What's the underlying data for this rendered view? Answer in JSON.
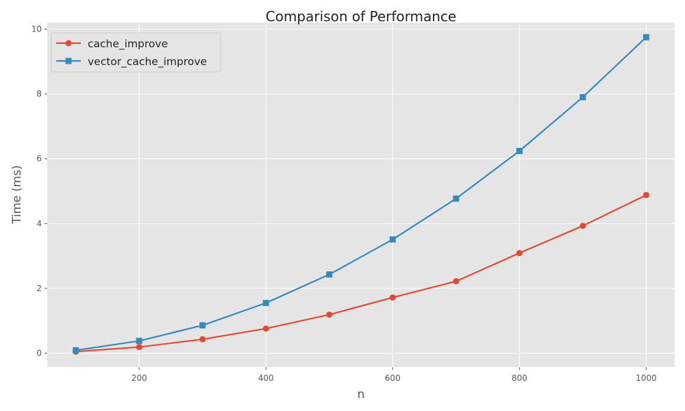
{
  "chart_data": {
    "type": "line",
    "title": "Comparison of Performance",
    "xlabel": "n",
    "ylabel": "Time (ms)",
    "x": [
      100,
      200,
      300,
      400,
      500,
      600,
      700,
      800,
      900,
      1000
    ],
    "xlim": [
      55,
      1045
    ],
    "ylim": [
      -0.43,
      10.2
    ],
    "xticks": [
      200,
      400,
      600,
      800,
      1000
    ],
    "yticks": [
      0,
      2,
      4,
      6,
      8,
      10
    ],
    "grid": true,
    "legend_position": "top-left",
    "series": [
      {
        "name": "cache_improve",
        "color": "#E24A33",
        "marker": "circle",
        "values": [
          0.05,
          0.19,
          0.43,
          0.76,
          1.19,
          1.72,
          2.22,
          3.09,
          3.93,
          4.88
        ]
      },
      {
        "name": "vector_cache_improve",
        "color": "#348ABD",
        "marker": "square",
        "values": [
          0.09,
          0.38,
          0.86,
          1.55,
          2.43,
          3.51,
          4.77,
          6.24,
          7.9,
          9.75
        ]
      }
    ]
  }
}
